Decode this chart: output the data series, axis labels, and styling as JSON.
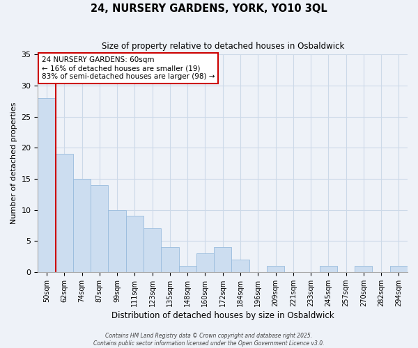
{
  "title": "24, NURSERY GARDENS, YORK, YO10 3QL",
  "subtitle": "Size of property relative to detached houses in Osbaldwick",
  "xlabel": "Distribution of detached houses by size in Osbaldwick",
  "ylabel": "Number of detached properties",
  "bin_labels": [
    "50sqm",
    "62sqm",
    "74sqm",
    "87sqm",
    "99sqm",
    "111sqm",
    "123sqm",
    "135sqm",
    "148sqm",
    "160sqm",
    "172sqm",
    "184sqm",
    "196sqm",
    "209sqm",
    "221sqm",
    "233sqm",
    "245sqm",
    "257sqm",
    "270sqm",
    "282sqm",
    "294sqm"
  ],
  "bar_heights": [
    28,
    19,
    15,
    14,
    10,
    9,
    7,
    4,
    1,
    3,
    4,
    2,
    0,
    1,
    0,
    0,
    1,
    0,
    1,
    0,
    1
  ],
  "bar_color": "#ccddf0",
  "bar_edge_color": "#99bbdd",
  "grid_color": "#ccd9e8",
  "bg_color": "#eef2f8",
  "marker_line_color": "#cc0000",
  "annotation_text": "24 NURSERY GARDENS: 60sqm\n← 16% of detached houses are smaller (19)\n83% of semi-detached houses are larger (98) →",
  "annotation_box_color": "#ffffff",
  "annotation_box_edge": "#cc0000",
  "ylim": [
    0,
    35
  ],
  "yticks": [
    0,
    5,
    10,
    15,
    20,
    25,
    30,
    35
  ],
  "footer_line1": "Contains HM Land Registry data © Crown copyright and database right 2025.",
  "footer_line2": "Contains public sector information licensed under the Open Government Licence v3.0."
}
